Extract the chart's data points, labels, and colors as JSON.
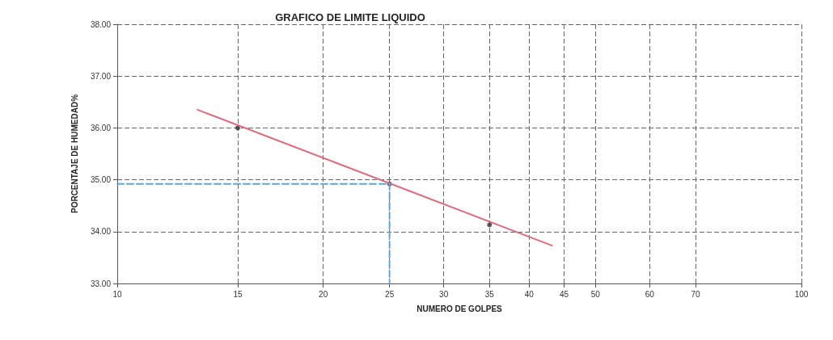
{
  "chart_data": {
    "type": "scatter",
    "title": "GRAFICO DE LIMITE LIQUIDO",
    "xlabel": "NUMERO DE GOLPES",
    "ylabel": "PORCENTAJE DE HUMEDAD%",
    "log": "x",
    "grid": true,
    "xlim": [
      10,
      100
    ],
    "xticks": [
      10,
      15,
      20,
      25,
      30,
      35,
      40,
      45,
      50,
      60,
      70,
      100
    ],
    "ylim": [
      33,
      38
    ],
    "yticks": [
      {
        "value": 33,
        "label": "33.00"
      },
      {
        "value": 34,
        "label": "34.00"
      },
      {
        "value": 35,
        "label": "35.00"
      },
      {
        "value": 36,
        "label": "36.00"
      },
      {
        "value": 37,
        "label": "37.00"
      },
      {
        "value": 38,
        "label": "38.00"
      }
    ],
    "series": [
      {
        "type": "line",
        "color": "#e06b7d",
        "marker": "none",
        "line_style": "solid",
        "x": [
          13.1,
          43.2
        ],
        "values": [
          36.35,
          33.73
        ]
      },
      {
        "type": "line",
        "color": "#5aa9d6",
        "marker": "none",
        "line_style": "dashed",
        "x": [
          10,
          25,
          25
        ],
        "values": [
          34.92,
          34.92,
          33
        ]
      },
      {
        "color": "#333333",
        "marker": "circle",
        "x": [
          15,
          25,
          35
        ],
        "values": [
          36.0,
          34.92,
          34.13
        ]
      }
    ]
  }
}
